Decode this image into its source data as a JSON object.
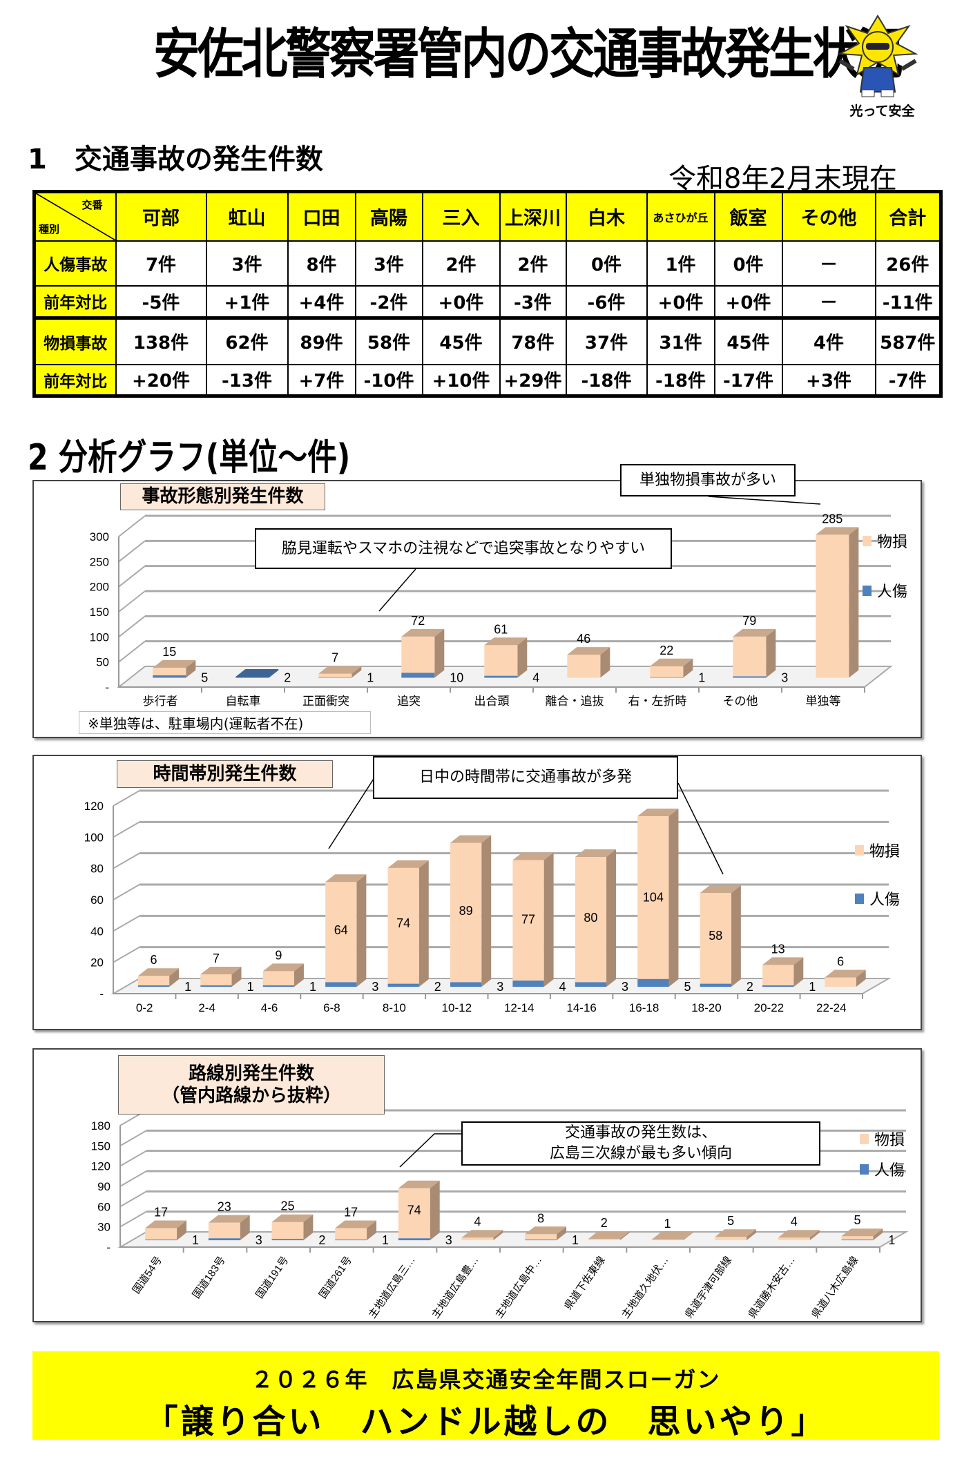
{
  "header": {
    "title": "安佐北警察署管内の交通事故発生状況",
    "logo_text": "光って安全"
  },
  "section1": {
    "heading": "1　交通事故の発生件数",
    "as_of": "令和8年2月末現在"
  },
  "table": {
    "corner_top": "交番",
    "corner_bottom": "種別",
    "columns": [
      "可部",
      "虹山",
      "口田",
      "高陽",
      "三入",
      "上深川",
      "白木",
      "あさひが丘",
      "飯室",
      "その他",
      "合計"
    ],
    "rows": [
      {
        "label": "人傷事故",
        "cells": [
          "7件",
          "3件",
          "8件",
          "3件",
          "2件",
          "2件",
          "0件",
          "1件",
          "0件",
          "－",
          "26件"
        ]
      },
      {
        "label": "前年対比",
        "cells": [
          "-5件",
          "+1件",
          "+4件",
          "-2件",
          "+0件",
          "-3件",
          "-6件",
          "+0件",
          "+0件",
          "－",
          "-11件"
        ]
      },
      {
        "label": "物損事故",
        "cells": [
          "138件",
          "62件",
          "89件",
          "58件",
          "45件",
          "78件",
          "37件",
          "31件",
          "45件",
          "4件",
          "587件"
        ]
      },
      {
        "label": "前年対比",
        "cells": [
          "+20件",
          "-13件",
          "+7件",
          "-10件",
          "+10件",
          "+29件",
          "-18件",
          "-18件",
          "-17件",
          "+3件",
          "-7件"
        ]
      }
    ]
  },
  "section2": {
    "heading": "2  分析グラフ(単位～件)"
  },
  "colors": {
    "property": "#fcd5b4",
    "injury": "#4f81bd",
    "header_yellow": "#ffff00",
    "title_box": "#fde9d9"
  },
  "chart_data": [
    {
      "type": "bar",
      "stacked": true,
      "three_d": true,
      "title": "事故形態別発生件数",
      "categories": [
        "歩行者",
        "自転車",
        "正面衝突",
        "追突",
        "出合頭",
        "離合・追抜",
        "右・左折時",
        "その他",
        "単独等"
      ],
      "series": [
        {
          "name": "人傷",
          "values": [
            5,
            2,
            1,
            10,
            4,
            0,
            1,
            3,
            0
          ]
        },
        {
          "name": "物損",
          "values": [
            15,
            0,
            7,
            72,
            61,
            46,
            22,
            79,
            285
          ]
        }
      ],
      "ylim": [
        0,
        300
      ],
      "yticks": [
        "-",
        "50",
        "100",
        "150",
        "200",
        "250",
        "300"
      ],
      "grid": true,
      "legend": "right",
      "annotations": [
        "単独物損事故が多い",
        "脇見運転やスマホの注視などで追突事故となりやすい"
      ],
      "note": "※単独等は、駐車場内(運転者不在)"
    },
    {
      "type": "bar",
      "stacked": true,
      "three_d": true,
      "title": "時間帯別発生件数",
      "categories": [
        "0-2",
        "2-4",
        "4-6",
        "6-8",
        "8-10",
        "10-12",
        "12-14",
        "14-16",
        "16-18",
        "18-20",
        "20-22",
        "22-24"
      ],
      "series": [
        {
          "name": "人傷",
          "values": [
            1,
            1,
            1,
            3,
            2,
            3,
            4,
            3,
            5,
            2,
            1,
            0
          ]
        },
        {
          "name": "物損",
          "values": [
            6,
            7,
            9,
            64,
            74,
            89,
            77,
            80,
            104,
            58,
            13,
            6
          ]
        }
      ],
      "ylim": [
        0,
        120
      ],
      "yticks": [
        "-",
        "20",
        "40",
        "60",
        "80",
        "100",
        "120"
      ],
      "grid": true,
      "legend": "right",
      "annotations": [
        "日中の時間帯に交通事故が多発"
      ]
    },
    {
      "type": "bar",
      "stacked": true,
      "three_d": true,
      "title": "路線別発生件数\n（管内路線から抜粋）",
      "categories": [
        "国道54号",
        "国道183号",
        "国道191号",
        "国道261号",
        "主地道広島三…",
        "主地道広島豊…",
        "主地道広島中…",
        "県道下佐東線",
        "主地道久地伏…",
        "県道宇津可部線",
        "県道勝木安古…",
        "県道八木広島線"
      ],
      "series": [
        {
          "name": "人傷",
          "values": [
            1,
            3,
            2,
            1,
            3,
            0,
            1,
            0,
            0,
            0,
            0,
            1
          ]
        },
        {
          "name": "物損",
          "values": [
            17,
            23,
            25,
            17,
            74,
            4,
            8,
            2,
            1,
            5,
            4,
            5
          ]
        }
      ],
      "ylim": [
        0,
        180
      ],
      "yticks": [
        "-",
        "30",
        "60",
        "90",
        "120",
        "150",
        "180"
      ],
      "grid": true,
      "legend": "right",
      "annotations": [
        "交通事故の発生数は、\n広島三次線が最も多い傾向"
      ]
    }
  ],
  "slogan": {
    "line1": "２０２６年　広島県交通安全年間スローガン",
    "line2": "「譲り合い　ハンドル越しの　思いやり」"
  }
}
